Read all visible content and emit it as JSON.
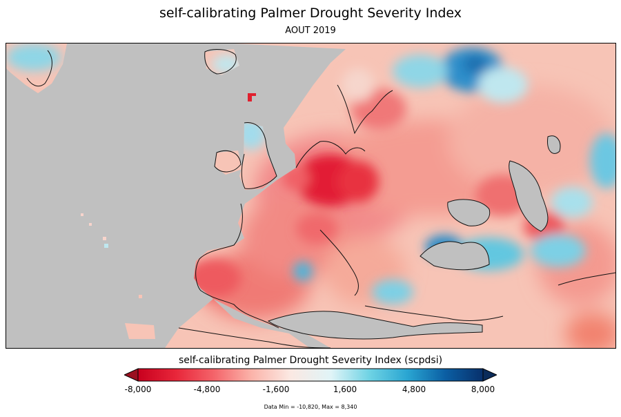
{
  "title": "self-calibrating Palmer Drought Severity Index",
  "subtitle": "AOUT 2019",
  "colorbar": {
    "title": "self-calibrating Palmer Drought Severity Index (scpdsi)",
    "ticks": [
      "-8,000",
      "-4,800",
      "-1,600",
      "1,600",
      "4,800",
      "8,000"
    ],
    "stops": [
      "#c8001e",
      "#e8263a",
      "#f4646a",
      "#fbb4aa",
      "#fbe8e2",
      "#e0f4f7",
      "#6fd3e4",
      "#2aa6d2",
      "#0b5fa4",
      "#08306b"
    ],
    "over_color": "#0b2c5a",
    "under_color": "#9a1020"
  },
  "data_range": "Data Min = -10,820, Max = 8,340",
  "colors": {
    "land_missing": "#c0c0c0",
    "coastline": "#111111"
  }
}
